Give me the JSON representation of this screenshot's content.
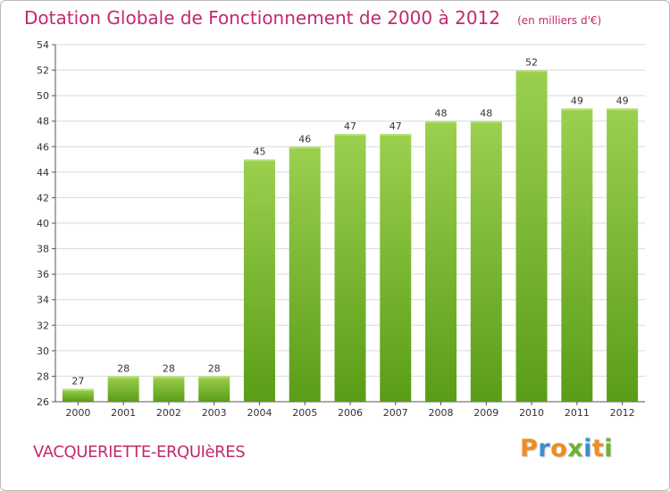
{
  "title": "Dotation Globale de Fonctionnement de 2000 à 2012",
  "subtitle": "(en milliers d'€)",
  "commune": "VACQUERIETTE-ERQUIèRES",
  "logo": {
    "letters": [
      "P",
      "r",
      "o",
      "x",
      "i",
      "t",
      "i"
    ],
    "colors": [
      "#f28c1e",
      "#3a8fd1",
      "#f28c1e",
      "#6cb42c",
      "#3a8fd1",
      "#f28c1e",
      "#6cb42c"
    ]
  },
  "colors": {
    "bar_top": "#9bd04f",
    "bar_bottom": "#5a9d16",
    "grid": "#d9d9d9",
    "title": "#c12a6d"
  },
  "chart_data": {
    "type": "bar",
    "title": "Dotation Globale de Fonctionnement de 2000 à 2012",
    "subtitle": "(en milliers d'€)",
    "categories": [
      "2000",
      "2001",
      "2002",
      "2003",
      "2004",
      "2005",
      "2006",
      "2007",
      "2008",
      "2009",
      "2010",
      "2011",
      "2012"
    ],
    "values": [
      27,
      28,
      28,
      28,
      45,
      46,
      47,
      47,
      48,
      48,
      52,
      49,
      49
    ],
    "data_labels": [
      "27",
      "28",
      "28",
      "28",
      "45",
      "46",
      "47",
      "47",
      "48",
      "48",
      "52",
      "49",
      "49"
    ],
    "ylim": [
      26,
      54
    ],
    "yticks": [
      26,
      28,
      30,
      32,
      34,
      36,
      38,
      40,
      42,
      44,
      46,
      48,
      50,
      52,
      54
    ],
    "grid": true,
    "xlabel": "",
    "ylabel": ""
  }
}
